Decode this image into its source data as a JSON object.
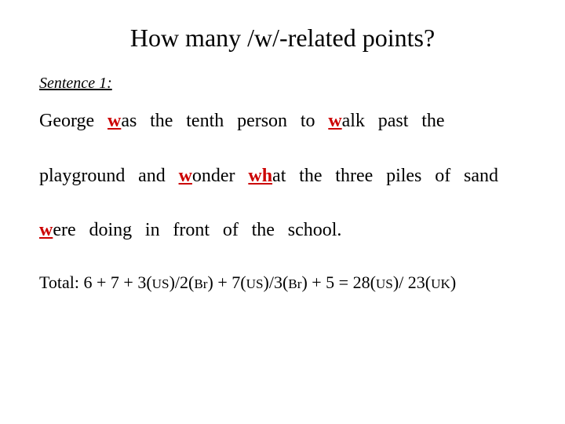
{
  "title": "How many /w/-related points?",
  "sentence_label": "Sentence 1:",
  "colors": {
    "text": "#000000",
    "highlight": "#cc0000",
    "background": "#ffffff"
  },
  "typography": {
    "title_fontsize": 32,
    "label_fontsize": 20,
    "body_fontsize": 24,
    "total_fontsize": 22,
    "font_family": "Times New Roman"
  },
  "words": [
    {
      "pre": "",
      "hl": "",
      "post": "George"
    },
    {
      "pre": "",
      "hl": "w",
      "post": "as"
    },
    {
      "pre": "",
      "hl": "",
      "post": "the"
    },
    {
      "pre": "",
      "hl": "",
      "post": "tenth"
    },
    {
      "pre": "",
      "hl": "",
      "post": "person"
    },
    {
      "pre": "",
      "hl": "",
      "post": "to"
    },
    {
      "pre": "",
      "hl": "w",
      "post": "alk"
    },
    {
      "pre": "",
      "hl": "",
      "post": "past"
    },
    {
      "pre": "",
      "hl": "",
      "post": "the"
    },
    {
      "pre": "",
      "hl": "",
      "post": "playground"
    },
    {
      "pre": "",
      "hl": "",
      "post": "and"
    },
    {
      "pre": "",
      "hl": "w",
      "post": "onder"
    },
    {
      "pre": "",
      "hl": "wh",
      "post": "at"
    },
    {
      "pre": "",
      "hl": "",
      "post": "the"
    },
    {
      "pre": "",
      "hl": "",
      "post": "three"
    },
    {
      "pre": "",
      "hl": "",
      "post": "piles"
    },
    {
      "pre": "",
      "hl": "",
      "post": "of"
    },
    {
      "pre": "",
      "hl": "",
      "post": "sand"
    },
    {
      "pre": "",
      "hl": "w",
      "post": "ere"
    },
    {
      "pre": "",
      "hl": "",
      "post": "doing"
    },
    {
      "pre": "",
      "hl": "",
      "post": "in"
    },
    {
      "pre": "",
      "hl": "",
      "post": "front"
    },
    {
      "pre": "",
      "hl": "",
      "post": "of"
    },
    {
      "pre": "",
      "hl": "",
      "post": "the"
    },
    {
      "pre": "",
      "hl": "",
      "post": "school."
    }
  ],
  "total": {
    "prefix": "Total:  6 + 7 + 3(",
    "us1": "US",
    "mid1": ")/2(",
    "br1": "Br",
    "mid2": ") + 7(",
    "us2": "US",
    "mid3": ")/3(",
    "br2": "Br",
    "mid4": ") + 5    =   28(",
    "us3": "US",
    "mid5": ")/ 23(",
    "uk": "UK",
    "end": ")"
  }
}
